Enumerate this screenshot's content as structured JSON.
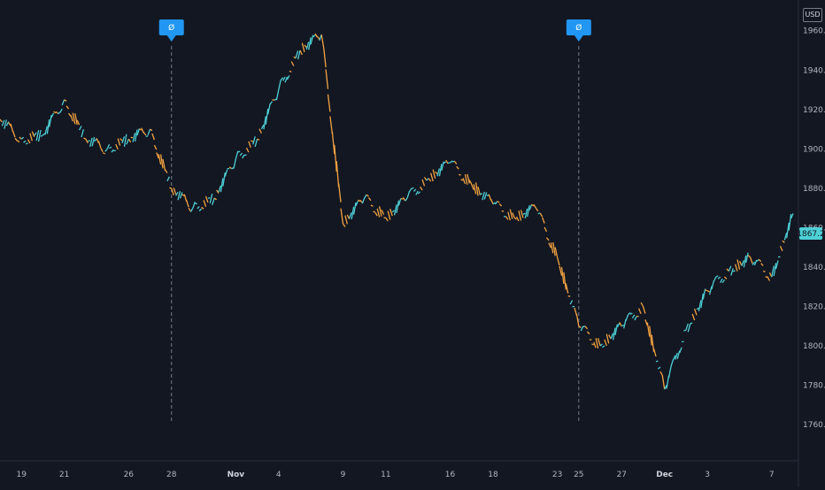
{
  "currency": "USD",
  "last_price_label": "1867.2",
  "colors": {
    "background": "#131722",
    "up": "#4dd0d6",
    "down": "#f4a340",
    "marker": "#2196f3",
    "axis_text": "#b2b5be",
    "separator": "#2a2e39"
  },
  "event_markers": [
    {
      "date": "Oct 28",
      "label": "Ø"
    },
    {
      "date": "Nov 24",
      "label": "Ø"
    }
  ],
  "chart_data": {
    "type": "line",
    "title": "",
    "xlabel": "",
    "ylabel": "",
    "ylim": [
      1752,
      1972
    ],
    "y_ticks": [
      1760.0,
      1780.0,
      1800.0,
      1820.0,
      1840.0,
      1860.0,
      1880.0,
      1900.0,
      1920.0,
      1940.0,
      1960.0
    ],
    "y_tick_labels": [
      "1760.0",
      "1780.0",
      "1800.0",
      "1820.0",
      "1840.0",
      "1860.0",
      "1880.0",
      "1900.0",
      "1920.0",
      "1940.0",
      "1960.0"
    ],
    "x_tick_labels": [
      "19",
      "21",
      "26",
      "28",
      "Nov",
      "4",
      "9",
      "11",
      "16",
      "18",
      "23",
      "25",
      "27",
      "Dec",
      "3",
      "7"
    ],
    "x_tick_bold": [
      "Nov",
      "Dec"
    ],
    "grid": false,
    "series": [
      {
        "x": [
          "Oct 16",
          "Oct 19",
          "Oct 20",
          "Oct 21",
          "Oct 22",
          "Oct 23",
          "Oct 26",
          "Oct 27",
          "Oct 28",
          "Oct 29",
          "Oct 30",
          "Nov 2",
          "Nov 3",
          "Nov 4",
          "Nov 5",
          "Nov 6",
          "Nov 9",
          "Nov 10",
          "Nov 11",
          "Nov 12",
          "Nov 13",
          "Nov 16",
          "Nov 17",
          "Nov 18",
          "Nov 19",
          "Nov 20",
          "Nov 23",
          "Nov 24",
          "Nov 25",
          "Nov 26",
          "Nov 27",
          "Nov 30",
          "Dec 1",
          "Dec 2",
          "Dec 3",
          "Dec 4",
          "Dec 7",
          "Dec 8"
        ],
        "values": [
          1915,
          1905,
          1907,
          1925,
          1905,
          1900,
          1905,
          1910,
          1880,
          1870,
          1875,
          1895,
          1905,
          1930,
          1950,
          1958,
          1862,
          1875,
          1865,
          1875,
          1885,
          1893,
          1882,
          1872,
          1865,
          1870,
          1845,
          1810,
          1800,
          1810,
          1820,
          1778,
          1808,
          1828,
          1838,
          1845,
          1835,
          1867.2
        ]
      }
    ]
  }
}
